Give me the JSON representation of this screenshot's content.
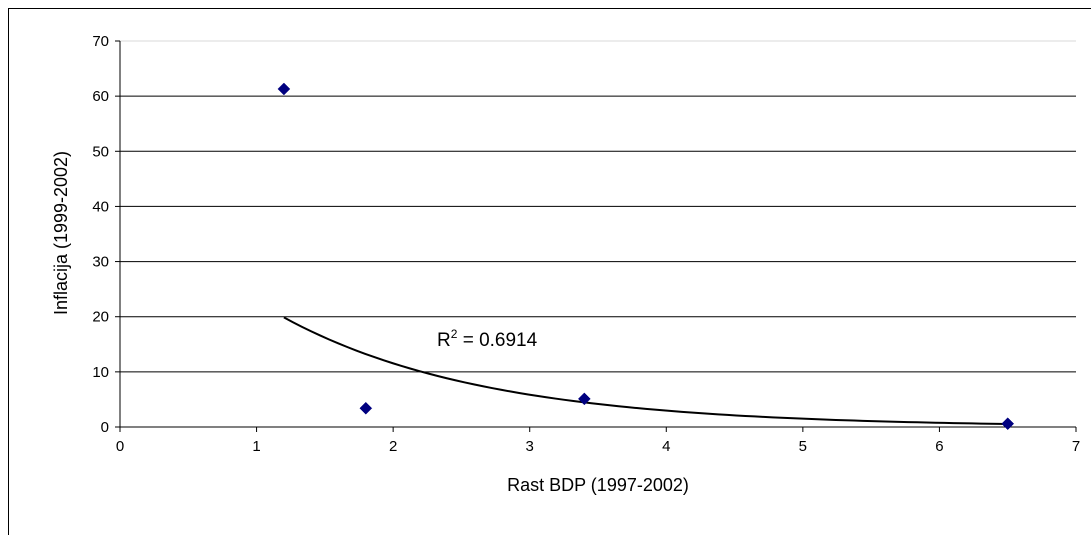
{
  "chart_data": {
    "type": "scatter",
    "xlabel": "Rast BDP (1997-2002)",
    "ylabel": "Inflacija (1999-2002)",
    "xlim": [
      0,
      7
    ],
    "ylim": [
      0,
      70
    ],
    "xticks": [
      0,
      1,
      2,
      3,
      4,
      5,
      6,
      7
    ],
    "yticks": [
      0,
      10,
      20,
      30,
      40,
      50,
      60,
      70
    ],
    "grid": "horizontal",
    "legend": "none",
    "marker": "diamond",
    "marker_color": "#000080",
    "series": [
      {
        "values": [
          {
            "x": 1.2,
            "y": 61.3
          },
          {
            "x": 1.8,
            "y": 3.4
          },
          {
            "x": 3.4,
            "y": 5.1
          },
          {
            "x": 6.5,
            "y": 0.6
          }
        ]
      }
    ],
    "trendline": {
      "type": "exponential",
      "x_range": [
        1.2,
        6.5
      ],
      "label_base": "R",
      "label_sup": "2",
      "label_rest": " = 0.6914"
    }
  }
}
